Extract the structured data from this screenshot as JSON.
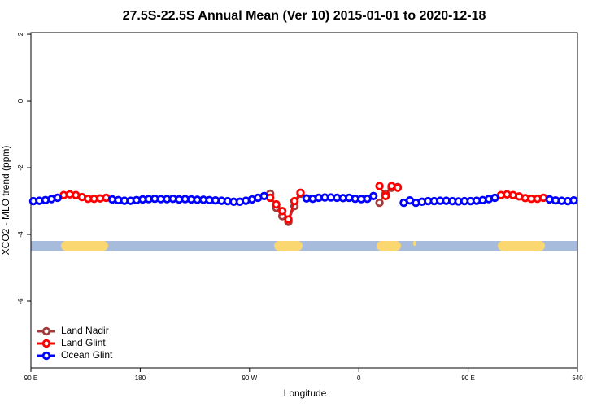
{
  "chart_data": {
    "type": "line",
    "title": "27.5S-22.5S Annual Mean (Ver 10)   2015-01-01 to 2020-12-18",
    "x_label": "Longitude",
    "y_label": "XCO2 - MLO trend (ppm)",
    "xlim": [
      90,
      540
    ],
    "xticks": [
      {
        "value": 90,
        "label": "90 E"
      },
      180,
      {
        "value": 270,
        "label": "90 W"
      },
      {
        "value": 360,
        "label": "0"
      },
      {
        "value": 450,
        "label": "90 E"
      },
      540
    ],
    "ylim": [
      -8,
      2.05
    ],
    "yticks": [
      -6,
      -4,
      -2,
      0,
      2
    ],
    "legend": "bottom-left",
    "x": [
      92,
      97,
      102,
      107,
      112,
      117,
      122,
      127,
      132,
      137,
      142,
      147,
      152,
      157,
      162,
      167,
      172,
      177,
      182,
      187,
      192,
      197,
      202,
      207,
      212,
      217,
      222,
      227,
      232,
      237,
      242,
      247,
      252,
      257,
      262,
      267,
      272,
      277,
      282,
      287,
      292,
      297,
      302,
      307,
      312,
      317,
      322,
      327,
      332,
      337,
      342,
      347,
      352,
      357,
      362,
      367,
      372,
      377,
      382,
      387,
      392,
      397,
      402,
      407,
      412,
      417,
      422,
      427,
      432,
      437,
      442,
      447,
      452,
      457,
      462,
      467,
      472,
      477,
      482,
      487,
      492,
      497,
      502,
      507,
      512,
      517,
      522,
      527,
      532,
      537
    ],
    "series": [
      {
        "name": "Land Nadir",
        "color": "#a33a3a",
        "values": [
          null,
          null,
          null,
          null,
          null,
          null,
          null,
          null,
          null,
          null,
          null,
          null,
          null,
          null,
          null,
          null,
          null,
          null,
          null,
          null,
          null,
          null,
          null,
          null,
          null,
          null,
          null,
          null,
          null,
          null,
          null,
          null,
          null,
          null,
          null,
          null,
          null,
          null,
          null,
          -2.78,
          -3.2,
          -3.45,
          -3.62,
          -3.15,
          -2.78,
          null,
          null,
          null,
          null,
          null,
          null,
          null,
          null,
          null,
          null,
          null,
          null,
          -3.05,
          -2.78,
          -2.6,
          -2.58,
          null,
          null,
          null,
          null,
          null,
          null,
          null,
          null,
          null,
          null,
          null,
          null,
          null,
          null,
          null,
          null,
          null,
          null,
          null,
          null,
          null,
          null,
          null,
          null,
          null,
          null,
          null,
          null,
          null
        ]
      },
      {
        "name": "Land Glint",
        "color": "#ff0000",
        "values": [
          null,
          null,
          null,
          null,
          null,
          -2.82,
          -2.8,
          -2.82,
          -2.88,
          -2.93,
          -2.93,
          -2.92,
          -2.9,
          null,
          null,
          null,
          null,
          null,
          null,
          null,
          null,
          null,
          null,
          null,
          null,
          null,
          null,
          null,
          null,
          null,
          null,
          null,
          null,
          null,
          null,
          null,
          null,
          null,
          null,
          -2.9,
          -3.1,
          -3.3,
          -3.55,
          -3.0,
          -2.75,
          null,
          null,
          null,
          null,
          null,
          null,
          null,
          null,
          null,
          null,
          null,
          null,
          -2.55,
          -2.85,
          -2.55,
          -2.6,
          null,
          null,
          null,
          null,
          null,
          null,
          null,
          null,
          null,
          null,
          null,
          null,
          null,
          null,
          null,
          null,
          -2.82,
          -2.8,
          -2.82,
          -2.86,
          -2.91,
          -2.93,
          -2.93,
          -2.9,
          null,
          null,
          null,
          null,
          null
        ]
      },
      {
        "name": "Ocean Glint",
        "color": "#0000ff",
        "values": [
          -3.0,
          -2.99,
          -2.97,
          -2.94,
          -2.9,
          null,
          null,
          null,
          null,
          null,
          null,
          null,
          null,
          -2.95,
          -2.97,
          -2.99,
          -2.99,
          -2.97,
          -2.95,
          -2.94,
          -2.93,
          -2.94,
          -2.94,
          -2.93,
          -2.95,
          -2.94,
          -2.95,
          -2.96,
          -2.96,
          -2.97,
          -2.98,
          -2.99,
          -3.0,
          -3.02,
          -3.02,
          -2.99,
          -2.95,
          -2.9,
          -2.85,
          null,
          null,
          null,
          null,
          null,
          null,
          -2.92,
          -2.93,
          -2.9,
          -2.89,
          -2.89,
          -2.9,
          -2.91,
          -2.9,
          -2.93,
          -2.94,
          -2.93,
          -2.85,
          null,
          null,
          null,
          null,
          -3.05,
          -2.98,
          -3.05,
          -3.02,
          -3.0,
          -3.0,
          -2.99,
          -2.99,
          -3.0,
          -3.01,
          -3.0,
          -3.0,
          -2.99,
          -2.97,
          -2.94,
          -2.9,
          null,
          null,
          null,
          null,
          null,
          null,
          null,
          null,
          -2.95,
          -2.98,
          -2.99,
          -3.0,
          -2.98
        ]
      }
    ]
  }
}
